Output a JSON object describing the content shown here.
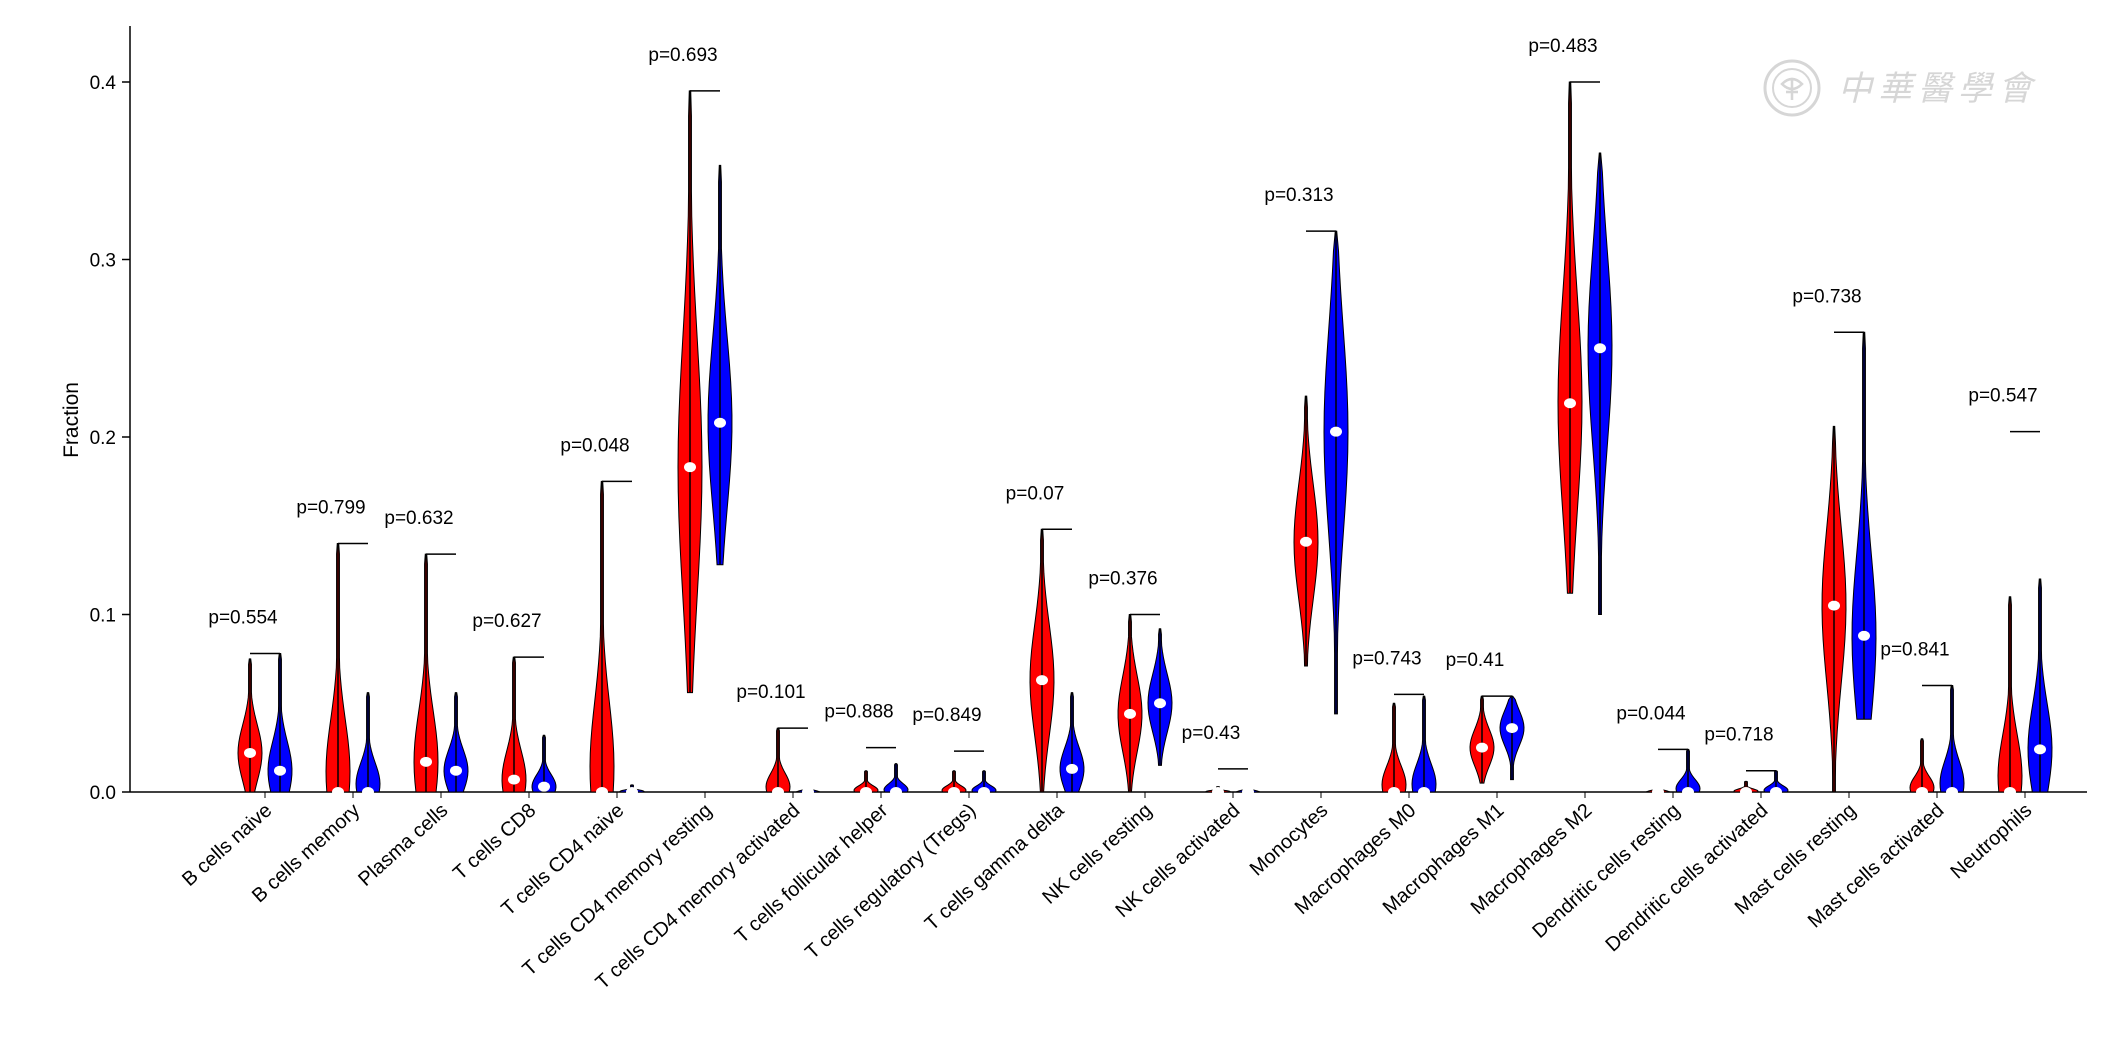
{
  "colors": {
    "group_a": "#ff0000",
    "group_b": "#0000ff",
    "median": "#ffffff",
    "watermark": "#d6d6d6"
  },
  "watermark": {
    "text": "中華醫學會",
    "icon": "medical-association-seal-icon"
  },
  "chart_data": {
    "type": "violin",
    "ylabel": "Fraction",
    "xlabel": "",
    "ylim": [
      0,
      0.42
    ],
    "yticks": [
      0.0,
      0.1,
      0.2,
      0.3,
      0.4
    ],
    "ytick_labels": [
      "0.0",
      "0.1",
      "0.2",
      "0.3",
      "0.4"
    ],
    "grid": false,
    "legend": "none",
    "categories": [
      "B cells naive",
      "B cells memory",
      "Plasma cells",
      "T cells CD8",
      "T cells CD4 naive",
      "T cells CD4 memory resting",
      "T cells CD4 memory activated",
      "T cells follicular helper",
      "T cells regulatory (Tregs)",
      "T cells gamma delta",
      "NK cells resting",
      "NK cells activated",
      "Monocytes",
      "Macrophages M0",
      "Macrophages M1",
      "Macrophages M2",
      "Dendritic cells resting",
      "Dendritic cells activated",
      "Mast cells resting",
      "Mast cells activated",
      "Neutrophils"
    ],
    "p_values": [
      "p=0.554",
      "p=0.799",
      "p=0.632",
      "p=0.627",
      "p=0.048",
      "p=0.693",
      "p=0.101",
      "p=0.888",
      "p=0.849",
      "p=0.07",
      "p=0.376",
      "p=0.43",
      "p=0.313",
      "p=0.743",
      "p=0.41",
      "p=0.483",
      "p=0.044",
      "p=0.718",
      "p=0.738",
      "p=0.841",
      "p=0.547"
    ],
    "series": [
      {
        "color": "#ff0000",
        "median": [
          0.022,
          0.0,
          0.017,
          0.007,
          0.0,
          0.183,
          0.0,
          0.0,
          0.0,
          0.063,
          0.044,
          0.0,
          0.141,
          0.0,
          0.025,
          0.219,
          0.0,
          0.0,
          0.105,
          0.0,
          0.0
        ],
        "max": [
          0.075,
          0.14,
          0.134,
          0.076,
          0.175,
          0.395,
          0.036,
          0.012,
          0.012,
          0.148,
          0.1,
          0.003,
          0.223,
          0.05,
          0.054,
          0.4,
          0.0,
          0.006,
          0.206,
          0.03,
          0.11
        ],
        "min": [
          0.0,
          0.0,
          0.0,
          0.0,
          0.0,
          0.056,
          0.0,
          0.0,
          0.0,
          0.0,
          0.0,
          0.0,
          0.071,
          0.0,
          0.005,
          0.112,
          0.0,
          0.0,
          0.0,
          0.0,
          0.0
        ]
      },
      {
        "color": "#0000ff",
        "median": [
          0.012,
          0.0,
          0.012,
          0.003,
          0.0,
          0.208,
          0.0,
          0.0,
          0.0,
          0.013,
          0.05,
          0.0,
          0.203,
          0.0,
          0.036,
          0.25,
          0.0,
          0.0,
          0.088,
          0.0,
          0.024
        ],
        "max": [
          0.078,
          0.056,
          0.056,
          0.032,
          0.004,
          0.353,
          0.0,
          0.016,
          0.012,
          0.056,
          0.092,
          0.0,
          0.316,
          0.054,
          0.054,
          0.36,
          0.024,
          0.012,
          0.259,
          0.06,
          0.12
        ],
        "min": [
          0.0,
          0.0,
          0.0,
          0.0,
          0.0,
          0.128,
          0.0,
          0.0,
          0.0,
          0.0,
          0.015,
          0.0,
          0.044,
          0.0,
          0.007,
          0.1,
          0.0,
          0.0,
          0.041,
          0.0,
          0.0
        ]
      }
    ],
    "whisker_top": [
      0.078,
      0.14,
      0.134,
      0.076,
      0.175,
      0.395,
      0.036,
      0.025,
      0.023,
      0.148,
      0.1,
      0.013,
      0.316,
      0.055,
      0.054,
      0.4,
      0.024,
      0.012,
      0.259,
      0.06,
      0.203
    ]
  }
}
